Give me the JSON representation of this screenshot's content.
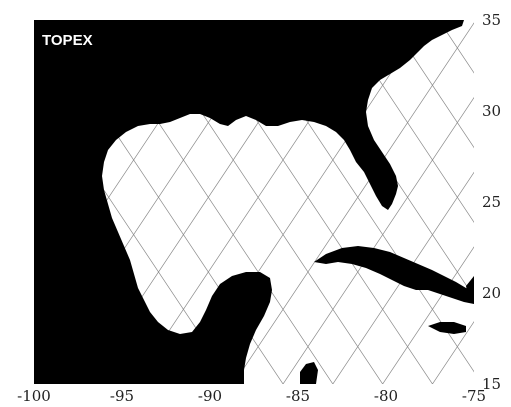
{
  "map": {
    "label": "TOPEX",
    "x_ticks": [
      "-100",
      "-95",
      "-90",
      "-85",
      "-80",
      "-75"
    ],
    "y_ticks": [
      "35",
      "30",
      "25",
      "20",
      "15"
    ],
    "lon_range": [
      -100,
      -75
    ],
    "lat_range": [
      15,
      35
    ],
    "land_color": "#000000",
    "water_color": "#ffffff",
    "track_color": "#8a8a8a",
    "tracks": "TOPEX satellite ground tracks (ascending and descending)"
  }
}
